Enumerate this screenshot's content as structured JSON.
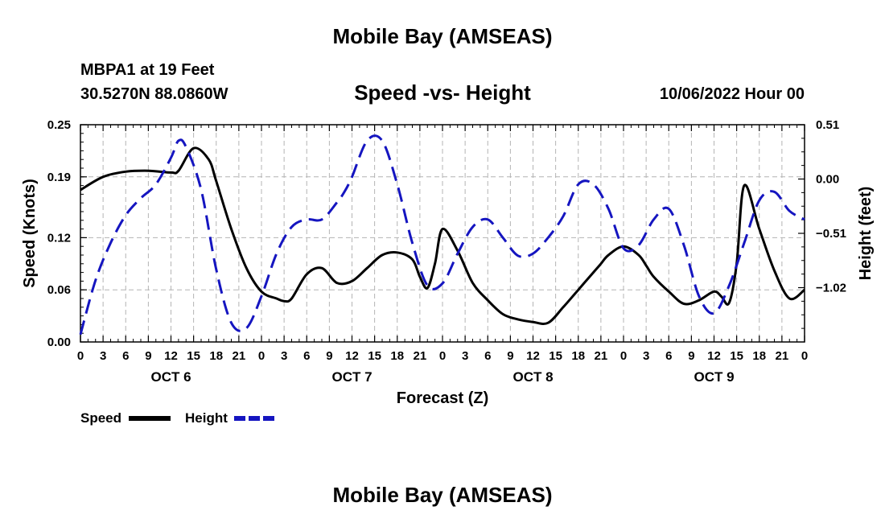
{
  "header": {
    "title": "Mobile Bay (AMSEAS)",
    "station": "MBPA1 at 19 Feet",
    "coords": "30.5270N  88.0860W",
    "subtitle": "Speed -vs- Height",
    "datetime": "10/06/2022 Hour 00"
  },
  "footer": {
    "repeat_title": "Mobile Bay (AMSEAS)"
  },
  "chart_data": {
    "type": "line",
    "title": "Speed -vs- Height",
    "xlabel": "Forecast (Z)",
    "ylabel": "Speed (Knots)",
    "y2label": "Height (feet)",
    "xlim": [
      0,
      96
    ],
    "ylim": [
      0,
      0.25
    ],
    "y2lim": [
      -1.53,
      0.51
    ],
    "yticks": [
      0.0,
      0.06,
      0.12,
      0.19,
      0.25
    ],
    "ytick_labels": [
      "0.00",
      "0.06",
      "0.12",
      "0.19",
      "0.25"
    ],
    "y2ticks": [
      -1.02,
      -0.51,
      0.0,
      0.51
    ],
    "y2tick_labels": [
      "−1.02",
      "−0.51",
      "0.00",
      "0.51"
    ],
    "xticks": [
      0,
      3,
      6,
      9,
      12,
      15,
      18,
      21,
      24,
      27,
      30,
      33,
      36,
      39,
      42,
      45,
      48,
      51,
      54,
      57,
      60,
      63,
      66,
      69,
      72,
      75,
      78,
      81,
      84,
      87,
      90,
      93,
      96
    ],
    "xtick_labels": [
      "0",
      "3",
      "6",
      "9",
      "12",
      "15",
      "18",
      "21",
      "0",
      "3",
      "6",
      "9",
      "12",
      "15",
      "18",
      "21",
      "0",
      "3",
      "6",
      "9",
      "12",
      "15",
      "18",
      "21",
      "0",
      "3",
      "6",
      "9",
      "12",
      "15",
      "18",
      "21",
      "0"
    ],
    "day_labels": [
      {
        "x": 12,
        "label": "OCT 6"
      },
      {
        "x": 36,
        "label": "OCT 7"
      },
      {
        "x": 60,
        "label": "OCT 8"
      },
      {
        "x": 84,
        "label": "OCT 9"
      }
    ],
    "grid": true,
    "series": [
      {
        "name": "Speed",
        "axis": "left",
        "color": "#000000",
        "style": "solid",
        "x": [
          0,
          3,
          6,
          9,
          12,
          13,
          15,
          17,
          18,
          20,
          22,
          24,
          26,
          27,
          28,
          30,
          32,
          34,
          36,
          38,
          40,
          42,
          44,
          45,
          46,
          47,
          48,
          50,
          52,
          54,
          56,
          58,
          60,
          62,
          64,
          66,
          68,
          69,
          70,
          72,
          74,
          75,
          76,
          78,
          80,
          82,
          84,
          85,
          86,
          87,
          88,
          90,
          92,
          94,
          96
        ],
        "y": [
          0.175,
          0.19,
          0.196,
          0.197,
          0.195,
          0.197,
          0.223,
          0.21,
          0.185,
          0.13,
          0.085,
          0.058,
          0.05,
          0.047,
          0.05,
          0.078,
          0.085,
          0.068,
          0.07,
          0.085,
          0.1,
          0.103,
          0.095,
          0.075,
          0.062,
          0.09,
          0.13,
          0.105,
          0.068,
          0.048,
          0.032,
          0.026,
          0.023,
          0.022,
          0.04,
          0.06,
          0.08,
          0.09,
          0.1,
          0.11,
          0.1,
          0.088,
          0.075,
          0.058,
          0.044,
          0.048,
          0.058,
          0.052,
          0.045,
          0.09,
          0.18,
          0.13,
          0.082,
          0.05,
          0.06
        ]
      },
      {
        "name": "Height",
        "axis": "right",
        "color": "#1515c0",
        "style": "dashed",
        "x": [
          0,
          2,
          4,
          6,
          8,
          10,
          12,
          13,
          14,
          16,
          18,
          20,
          22,
          24,
          26,
          28,
          30,
          32,
          34,
          35,
          36,
          38,
          40,
          42,
          44,
          46,
          48,
          50,
          52,
          54,
          56,
          58,
          60,
          62,
          64,
          66,
          68,
          70,
          72,
          74,
          76,
          78,
          80,
          82,
          84,
          86,
          88,
          90,
          92,
          94,
          96
        ],
        "y": [
          -1.46,
          -0.95,
          -0.6,
          -0.34,
          -0.18,
          -0.05,
          0.2,
          0.36,
          0.3,
          -0.1,
          -0.85,
          -1.35,
          -1.4,
          -1.1,
          -0.7,
          -0.45,
          -0.38,
          -0.38,
          -0.22,
          -0.12,
          0.02,
          0.36,
          0.36,
          -0.05,
          -0.6,
          -1.0,
          -0.98,
          -0.7,
          -0.45,
          -0.38,
          -0.55,
          -0.72,
          -0.7,
          -0.55,
          -0.35,
          -0.05,
          -0.05,
          -0.28,
          -0.65,
          -0.62,
          -0.38,
          -0.28,
          -0.62,
          -1.1,
          -1.26,
          -1.0,
          -0.6,
          -0.2,
          -0.12,
          -0.3,
          -0.38
        ]
      }
    ],
    "legend": {
      "placement": "bottom-left",
      "entries": [
        {
          "label": "Speed",
          "color": "#000000",
          "style": "solid"
        },
        {
          "label": "Height",
          "color": "#1515c0",
          "style": "dashed"
        }
      ]
    }
  }
}
